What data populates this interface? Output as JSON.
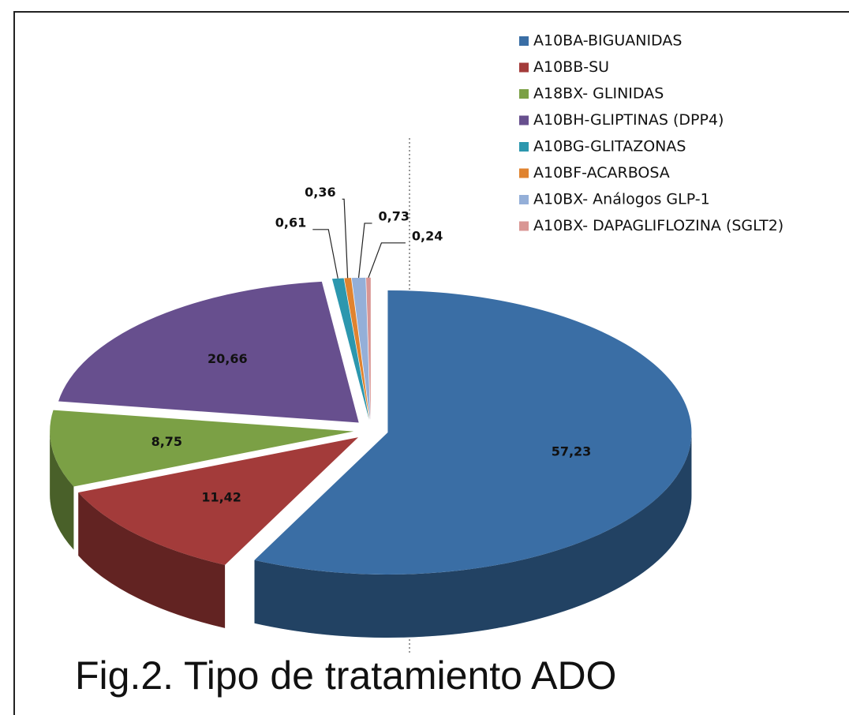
{
  "chart_data": {
    "type": "pie",
    "title": "Fig.2. Tipo de tratamiento ADO",
    "categories": [
      "A10BA-BIGUANIDAS",
      "A10BB-SU",
      "A18BX- GLINIDAS",
      "A10BH-GLIPTINAS (DPP4)",
      "A10BG-GLITAZONAS",
      "A10BF-ACARBOSA",
      "A10BX- Análogos GLP-1",
      "A10BX- DAPAGLIFLOZINA (SGLT2)"
    ],
    "values": [
      57.23,
      11.42,
      8.75,
      20.66,
      0.61,
      0.36,
      0.73,
      0.24
    ],
    "value_labels": [
      "57,23",
      "11,42",
      "8,75",
      "20,66",
      "0,61",
      "0,36",
      "0,73",
      "0,24"
    ],
    "colors": [
      "#3a6ea5",
      "#a33b3a",
      "#7ba045",
      "#674f8e",
      "#2c97ae",
      "#e0832f",
      "#94afd8",
      "#d99694"
    ],
    "legend": "top-right"
  }
}
